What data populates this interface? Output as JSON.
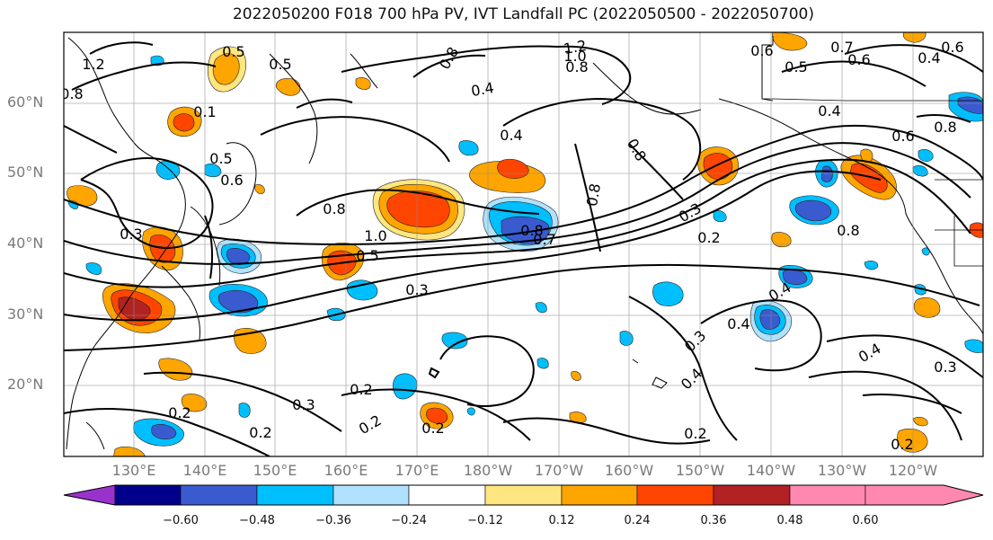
{
  "title": "2022050200 F018 700 hPa PV, IVT Landfall PC (2022050500 - 2022050700)",
  "lat_labels": [
    "60°N",
    "50°N",
    "40°N",
    "30°N",
    "20°N"
  ],
  "lon_labels": [
    "130°E",
    "140°E",
    "150°E",
    "160°E",
    "170°E",
    "180°W",
    "170°W",
    "160°W",
    "150°W",
    "140°W",
    "130°W",
    "120°W"
  ],
  "colorbar": {
    "ticks": [
      "−0.60",
      "−0.48",
      "−0.36",
      "−0.24",
      "−0.12",
      "0.12",
      "0.24",
      "0.36",
      "0.48",
      "0.60"
    ],
    "colors": [
      "#9932CC",
      "#00008B",
      "#3A5BCF",
      "#00BFFF",
      "#B0E2FF",
      "#FFFFFF",
      "#FFE680",
      "#FFA500",
      "#FF4500",
      "#B22222",
      "#FF88B0"
    ]
  },
  "contour_labels": [
    "1.2",
    "0.8",
    "0.5",
    "0.5",
    "0.8",
    "0.4",
    "1.2",
    "1.0",
    "0.8",
    "0.7",
    "0.6",
    "0.6",
    "0.6",
    "0.5",
    "0.4",
    "0.4",
    "0.6",
    "0.4",
    "0.8",
    "0.1",
    "0.5",
    "0.6",
    "0.8",
    "1.0",
    "0.5",
    "0.8",
    "0.7",
    "0.8",
    "0.2",
    "0.8",
    "0.3",
    "0.3",
    "0.3",
    "0.4",
    "0.4",
    "0.3",
    "0.4",
    "0.4",
    "0.2",
    "0.3",
    "0.2",
    "0.2",
    "0.2",
    "0.2",
    "0.2",
    "0.2",
    "0.3",
    "0.8"
  ]
}
